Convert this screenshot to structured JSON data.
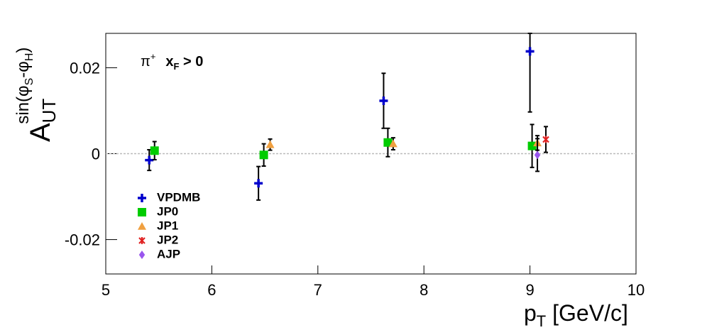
{
  "chart_data": {
    "type": "scatter",
    "x_label": {
      "main": "p",
      "sub": "T",
      "rest": " [GeV/c]"
    },
    "y_label": {
      "main": "A",
      "sub": "UT",
      "sup": "sin(φ",
      "sup_sub1": "S",
      "sup_mid": "-φ",
      "sup_sub2": "H",
      "sup_end": ")"
    },
    "annotation": {
      "particle": "π",
      "charge": "+",
      "cut_main": "x",
      "cut_sub": "F",
      "cut_rest": " > 0"
    },
    "xlim": [
      5,
      10
    ],
    "xticks": [
      5,
      6,
      7,
      8,
      9,
      10
    ],
    "ylim": [
      -0.028,
      0.028
    ],
    "yticks": [
      -0.02,
      0,
      0.02
    ],
    "reference_line": 0,
    "series": [
      {
        "name": "VPDMB",
        "color": "#0000cc",
        "marker": "cross",
        "x": [
          5.41,
          6.44,
          7.62,
          9.0
        ],
        "values": [
          -0.0015,
          -0.0069,
          0.0123,
          0.0238
        ],
        "errors": [
          0.0024,
          0.0039,
          0.0064,
          0.0141
        ]
      },
      {
        "name": "JP0",
        "color": "#00cc00",
        "marker": "square",
        "x": [
          5.46,
          6.49,
          7.66,
          9.02
        ],
        "values": [
          0.0007,
          -0.0003,
          0.0026,
          0.0018
        ],
        "errors": [
          0.0021,
          0.0026,
          0.0033,
          0.005
        ]
      },
      {
        "name": "JP1",
        "color": "#f0a040",
        "marker": "triangle",
        "x": [
          6.55,
          7.71,
          9.07
        ],
        "values": [
          0.0021,
          0.0023,
          0.0025
        ],
        "errors": [
          0.0013,
          0.0014,
          0.0017
        ]
      },
      {
        "name": "JP2",
        "color": "#e02020",
        "marker": "star",
        "x": [
          9.15
        ],
        "values": [
          0.0033
        ],
        "errors": [
          0.003
        ]
      },
      {
        "name": "AJP",
        "color": "#9955ee",
        "marker": "diamond",
        "x": [
          9.07
        ],
        "values": [
          -0.0003
        ],
        "errors": [
          0.0038
        ]
      }
    ]
  }
}
